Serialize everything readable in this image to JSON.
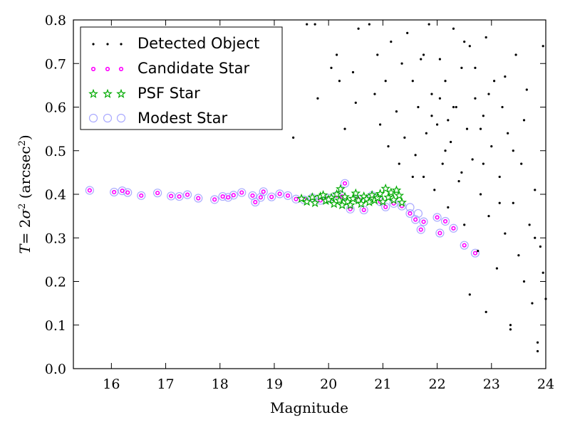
{
  "chart_data": {
    "type": "scatter",
    "xlabel": "Magnitude",
    "ylabel_parts": {
      "T": "T",
      "eq": "= 2",
      "sigma": "σ",
      "sup": "2",
      "open": " (arcsec",
      "close": ")"
    },
    "xlim": [
      15.3,
      24
    ],
    "ylim": [
      0.0,
      0.8
    ],
    "xticks": [
      16,
      17,
      18,
      19,
      20,
      21,
      22,
      23,
      24
    ],
    "xtick_labels": [
      "16",
      "17",
      "18",
      "19",
      "20",
      "21",
      "22",
      "23",
      "24"
    ],
    "yticks": [
      0.0,
      0.1,
      0.2,
      0.3,
      0.4,
      0.5,
      0.6,
      0.7,
      0.8
    ],
    "ytick_labels": [
      "0.0",
      "0.1",
      "0.2",
      "0.3",
      "0.4",
      "0.5",
      "0.6",
      "0.7",
      "0.8"
    ],
    "legend_position": "top-left",
    "grid": false,
    "series": [
      {
        "name": "Detected Object",
        "marker": "dot",
        "color": "#000000",
        "points": [
          [
            19.35,
            0.53
          ],
          [
            19.6,
            0.79
          ],
          [
            19.75,
            0.79
          ],
          [
            19.8,
            0.62
          ],
          [
            20.05,
            0.69
          ],
          [
            20.15,
            0.72
          ],
          [
            20.2,
            0.66
          ],
          [
            20.3,
            0.55
          ],
          [
            20.45,
            0.68
          ],
          [
            20.5,
            0.61
          ],
          [
            20.55,
            0.78
          ],
          [
            20.75,
            0.79
          ],
          [
            20.85,
            0.63
          ],
          [
            20.9,
            0.72
          ],
          [
            20.95,
            0.56
          ],
          [
            21.05,
            0.66
          ],
          [
            21.1,
            0.51
          ],
          [
            21.15,
            0.75
          ],
          [
            21.25,
            0.59
          ],
          [
            21.3,
            0.47
          ],
          [
            21.4,
            0.53
          ],
          [
            21.45,
            0.77
          ],
          [
            21.55,
            0.66
          ],
          [
            21.6,
            0.49
          ],
          [
            21.65,
            0.6
          ],
          [
            21.7,
            0.71
          ],
          [
            21.75,
            0.44
          ],
          [
            21.8,
            0.54
          ],
          [
            21.85,
            0.79
          ],
          [
            21.9,
            0.63
          ],
          [
            21.95,
            0.41
          ],
          [
            22.0,
            0.56
          ],
          [
            22.05,
            0.71
          ],
          [
            22.1,
            0.47
          ],
          [
            22.15,
            0.66
          ],
          [
            22.2,
            0.37
          ],
          [
            22.25,
            0.52
          ],
          [
            22.3,
            0.78
          ],
          [
            22.35,
            0.6
          ],
          [
            22.4,
            0.43
          ],
          [
            22.45,
            0.69
          ],
          [
            22.5,
            0.33
          ],
          [
            22.55,
            0.55
          ],
          [
            22.6,
            0.74
          ],
          [
            22.65,
            0.48
          ],
          [
            22.7,
            0.62
          ],
          [
            22.75,
            0.27
          ],
          [
            22.8,
            0.4
          ],
          [
            22.85,
            0.58
          ],
          [
            22.9,
            0.76
          ],
          [
            22.95,
            0.35
          ],
          [
            23.0,
            0.51
          ],
          [
            23.05,
            0.66
          ],
          [
            23.1,
            0.23
          ],
          [
            23.15,
            0.44
          ],
          [
            23.2,
            0.6
          ],
          [
            23.25,
            0.31
          ],
          [
            23.3,
            0.54
          ],
          [
            23.35,
            0.1
          ],
          [
            23.4,
            0.38
          ],
          [
            23.45,
            0.72
          ],
          [
            23.5,
            0.26
          ],
          [
            23.55,
            0.47
          ],
          [
            23.6,
            0.2
          ],
          [
            23.65,
            0.64
          ],
          [
            23.7,
            0.33
          ],
          [
            23.75,
            0.15
          ],
          [
            23.8,
            0.41
          ],
          [
            23.85,
            0.06
          ],
          [
            23.9,
            0.28
          ],
          [
            23.95,
            0.74
          ],
          [
            24.0,
            0.16
          ],
          [
            22.6,
            0.17
          ],
          [
            22.9,
            0.13
          ],
          [
            23.35,
            0.09
          ],
          [
            23.85,
            0.04
          ],
          [
            23.95,
            0.22
          ],
          [
            22.3,
            0.6
          ],
          [
            22.7,
            0.69
          ],
          [
            22.2,
            0.57
          ],
          [
            21.9,
            0.58
          ],
          [
            22.45,
            0.45
          ],
          [
            22.8,
            0.55
          ],
          [
            23.15,
            0.38
          ],
          [
            21.75,
            0.72
          ],
          [
            22.05,
            0.62
          ],
          [
            22.95,
            0.63
          ],
          [
            23.4,
            0.5
          ],
          [
            23.6,
            0.57
          ],
          [
            23.8,
            0.3
          ],
          [
            21.35,
            0.7
          ],
          [
            21.55,
            0.44
          ],
          [
            22.5,
            0.75
          ],
          [
            22.15,
            0.5
          ],
          [
            22.85,
            0.47
          ],
          [
            23.25,
            0.67
          ]
        ]
      },
      {
        "name": "Candidate Star",
        "marker": "small-circle",
        "color": "#ff00ff",
        "points": [
          [
            15.6,
            0.409
          ],
          [
            16.05,
            0.405
          ],
          [
            16.2,
            0.408
          ],
          [
            16.3,
            0.404
          ],
          [
            16.55,
            0.397
          ],
          [
            16.85,
            0.403
          ],
          [
            17.1,
            0.396
          ],
          [
            17.25,
            0.395
          ],
          [
            17.4,
            0.399
          ],
          [
            17.6,
            0.391
          ],
          [
            17.9,
            0.388
          ],
          [
            18.05,
            0.395
          ],
          [
            18.15,
            0.393
          ],
          [
            18.25,
            0.398
          ],
          [
            18.4,
            0.404
          ],
          [
            18.6,
            0.397
          ],
          [
            18.65,
            0.382
          ],
          [
            18.75,
            0.393
          ],
          [
            18.8,
            0.406
          ],
          [
            18.95,
            0.394
          ],
          [
            19.1,
            0.401
          ],
          [
            19.25,
            0.397
          ],
          [
            19.4,
            0.389
          ],
          [
            19.55,
            0.387
          ],
          [
            19.7,
            0.392
          ],
          [
            19.85,
            0.386
          ],
          [
            20.0,
            0.391
          ],
          [
            20.15,
            0.397
          ],
          [
            20.25,
            0.395
          ],
          [
            20.3,
            0.425
          ],
          [
            20.4,
            0.366
          ],
          [
            20.55,
            0.389
          ],
          [
            20.65,
            0.364
          ],
          [
            20.8,
            0.397
          ],
          [
            20.95,
            0.383
          ],
          [
            21.05,
            0.371
          ],
          [
            21.2,
            0.379
          ],
          [
            21.35,
            0.373
          ],
          [
            21.5,
            0.356
          ],
          [
            21.6,
            0.342
          ],
          [
            21.75,
            0.337
          ],
          [
            22.0,
            0.347
          ],
          [
            22.05,
            0.311
          ],
          [
            22.15,
            0.338
          ],
          [
            22.3,
            0.322
          ],
          [
            22.5,
            0.283
          ],
          [
            22.7,
            0.265
          ],
          [
            21.7,
            0.319
          ]
        ]
      },
      {
        "name": "PSF Star",
        "marker": "star",
        "color": "#00aa00",
        "points": [
          [
            19.5,
            0.39
          ],
          [
            19.6,
            0.383
          ],
          [
            19.7,
            0.393
          ],
          [
            19.75,
            0.38
          ],
          [
            19.85,
            0.395
          ],
          [
            19.95,
            0.385
          ],
          [
            20.05,
            0.392
          ],
          [
            20.1,
            0.378
          ],
          [
            20.15,
            0.4
          ],
          [
            20.2,
            0.386
          ],
          [
            20.25,
            0.375
          ],
          [
            20.3,
            0.394
          ],
          [
            20.35,
            0.383
          ],
          [
            20.45,
            0.39
          ],
          [
            20.5,
            0.402
          ],
          [
            20.55,
            0.386
          ],
          [
            20.6,
            0.378
          ],
          [
            20.65,
            0.395
          ],
          [
            20.7,
            0.389
          ],
          [
            20.75,
            0.382
          ],
          [
            20.8,
            0.398
          ],
          [
            20.85,
            0.386
          ],
          [
            20.9,
            0.392
          ],
          [
            20.95,
            0.401
          ],
          [
            21.0,
            0.383
          ],
          [
            21.05,
            0.413
          ],
          [
            21.1,
            0.393
          ],
          [
            21.15,
            0.404
          ],
          [
            21.2,
            0.387
          ],
          [
            21.25,
            0.409
          ],
          [
            21.3,
            0.397
          ],
          [
            21.35,
            0.381
          ],
          [
            20.22,
            0.412
          ],
          [
            19.9,
            0.398
          ],
          [
            20.4,
            0.375
          ],
          [
            20.0,
            0.388
          ]
        ]
      },
      {
        "name": "Modest Star",
        "marker": "open-circle",
        "color": "#aaaaff",
        "points": [
          [
            15.6,
            0.409
          ],
          [
            16.05,
            0.405
          ],
          [
            16.2,
            0.408
          ],
          [
            16.3,
            0.404
          ],
          [
            16.55,
            0.397
          ],
          [
            16.85,
            0.403
          ],
          [
            17.1,
            0.396
          ],
          [
            17.25,
            0.395
          ],
          [
            17.4,
            0.399
          ],
          [
            17.6,
            0.391
          ],
          [
            17.9,
            0.388
          ],
          [
            18.05,
            0.395
          ],
          [
            18.15,
            0.393
          ],
          [
            18.25,
            0.398
          ],
          [
            18.4,
            0.404
          ],
          [
            18.6,
            0.397
          ],
          [
            18.65,
            0.382
          ],
          [
            18.75,
            0.393
          ],
          [
            18.8,
            0.406
          ],
          [
            18.95,
            0.394
          ],
          [
            19.1,
            0.401
          ],
          [
            19.25,
            0.397
          ],
          [
            19.4,
            0.389
          ],
          [
            19.55,
            0.387
          ],
          [
            19.7,
            0.392
          ],
          [
            19.85,
            0.386
          ],
          [
            20.0,
            0.391
          ],
          [
            20.15,
            0.397
          ],
          [
            20.25,
            0.395
          ],
          [
            20.3,
            0.425
          ],
          [
            20.4,
            0.366
          ],
          [
            20.55,
            0.389
          ],
          [
            20.65,
            0.364
          ],
          [
            20.8,
            0.397
          ],
          [
            20.95,
            0.383
          ],
          [
            21.05,
            0.371
          ],
          [
            21.2,
            0.379
          ],
          [
            21.35,
            0.373
          ],
          [
            21.5,
            0.356
          ],
          [
            21.6,
            0.342
          ],
          [
            21.75,
            0.337
          ],
          [
            22.0,
            0.347
          ],
          [
            22.05,
            0.311
          ],
          [
            22.15,
            0.338
          ],
          [
            22.3,
            0.322
          ],
          [
            22.5,
            0.283
          ],
          [
            22.7,
            0.265
          ],
          [
            21.7,
            0.319
          ],
          [
            21.5,
            0.37
          ],
          [
            21.65,
            0.356
          ]
        ]
      }
    ]
  }
}
